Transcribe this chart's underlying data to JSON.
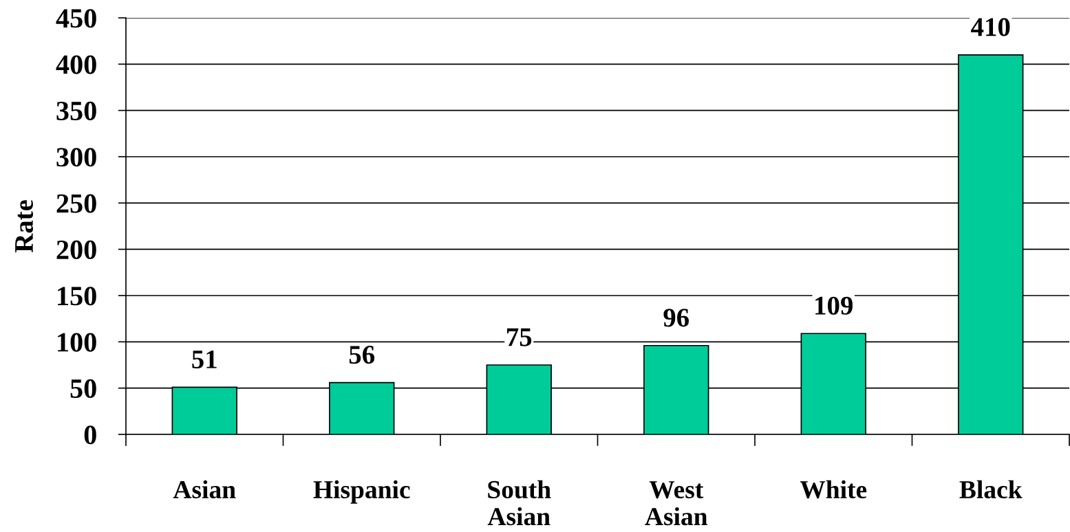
{
  "chart_data": {
    "type": "bar",
    "ylabel": "Rate",
    "categories": [
      "Asian",
      "Hispanic",
      "South\nAsian",
      "West\nAsian",
      "White",
      "Black"
    ],
    "values": [
      51,
      56,
      75,
      96,
      109,
      410
    ],
    "color": "#00cc99",
    "ylim": [
      0,
      450
    ],
    "yticks": [
      0,
      50,
      100,
      150,
      200,
      250,
      300,
      350,
      400,
      450
    ],
    "grid": "y",
    "data_labels": true
  }
}
